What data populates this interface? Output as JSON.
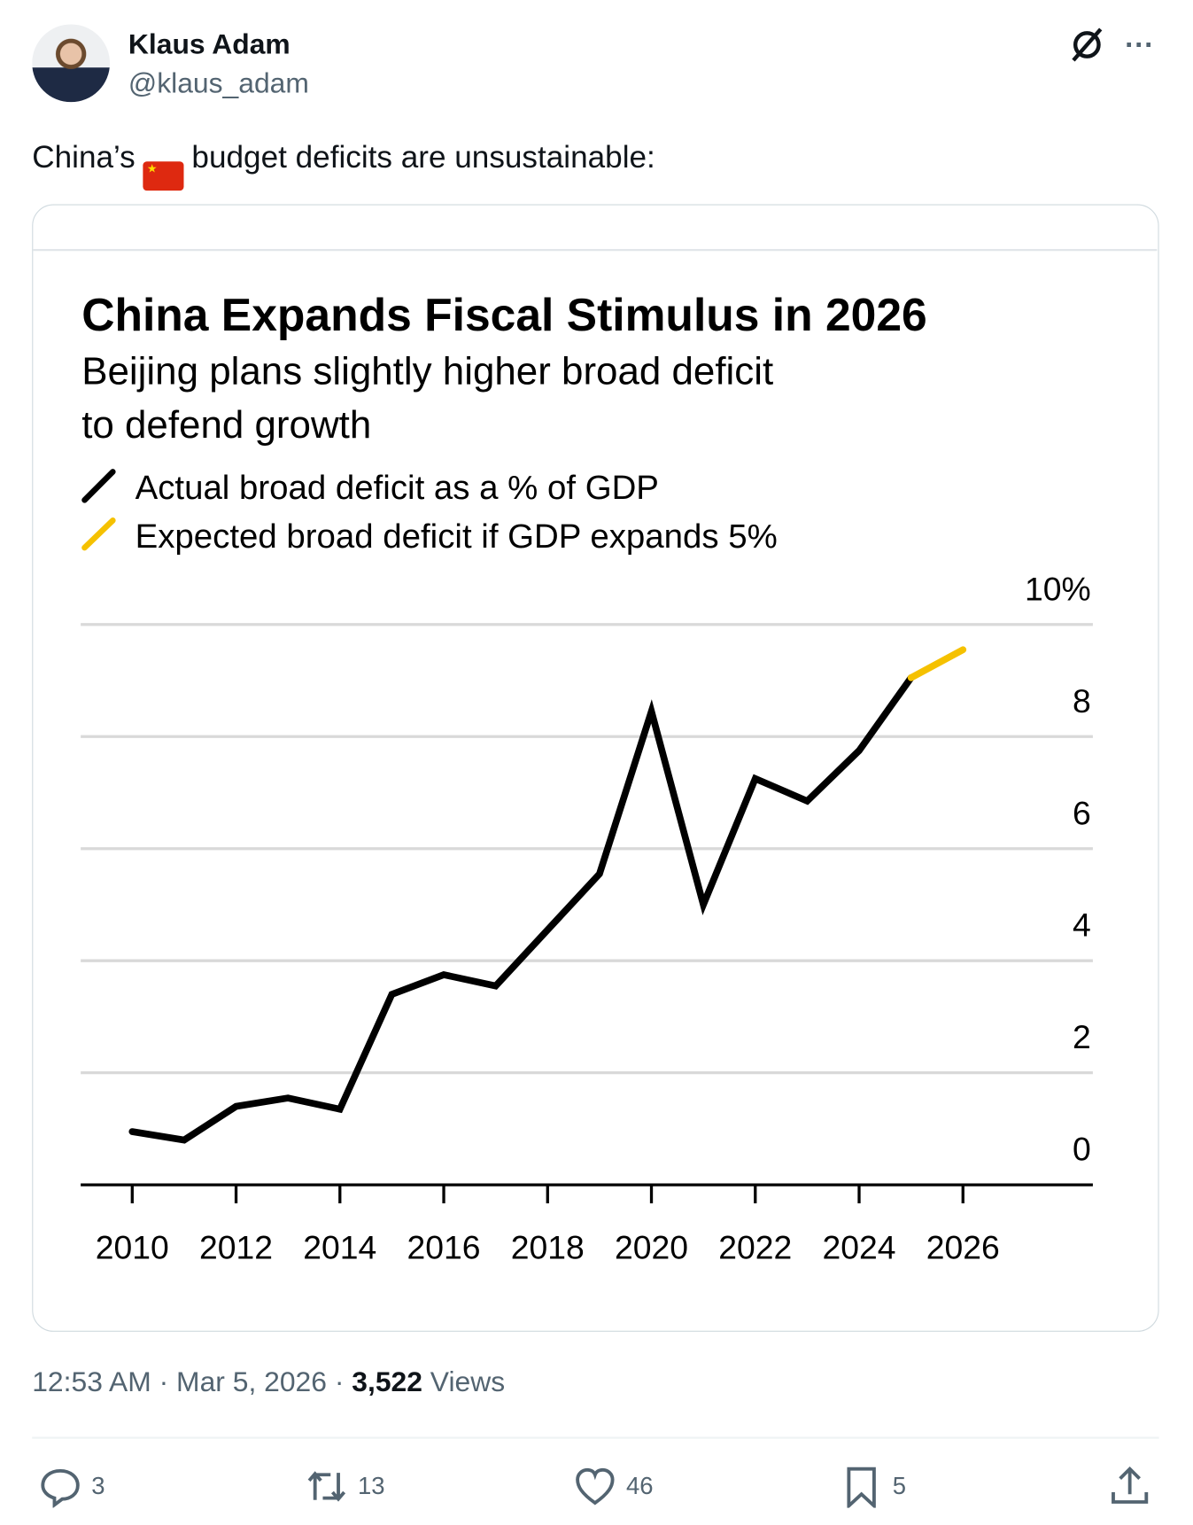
{
  "author": {
    "name": "Klaus Adam",
    "handle": "@klaus_adam"
  },
  "post": {
    "text_before": "China’s",
    "flag": "🇨🇳",
    "text_after": "budget deficits are unsustainable:"
  },
  "meta": {
    "time": "12:53 AM",
    "date": "Mar 5, 2026",
    "views_count": "3,522",
    "views_label": "Views",
    "sep": "·"
  },
  "actions": {
    "replies": "3",
    "reposts": "13",
    "likes": "46",
    "bookmarks": "5"
  },
  "icons": [
    "grok-icon",
    "more-icon",
    "reply-icon",
    "repost-icon",
    "like-icon",
    "bookmark-icon",
    "share-icon"
  ],
  "chart_data": {
    "type": "line",
    "title": "China Expands Fiscal Stimulus in 2026",
    "subtitle_lines": [
      "Beijing plans slightly higher broad deficit",
      "to defend growth"
    ],
    "legend": [
      "Actual broad deficit as a % of GDP",
      "Expected broad deficit if GDP expands 5%"
    ],
    "colors": {
      "actual": "#000000",
      "expected": "#f5c100"
    },
    "ylim": [
      0,
      10
    ],
    "yticks": [
      "0",
      "2",
      "4",
      "6",
      "8",
      "10%"
    ],
    "xticks": [
      "2010",
      "2012",
      "2014",
      "2016",
      "2018",
      "2020",
      "2022",
      "2024",
      "2026"
    ],
    "series": [
      {
        "name": "Actual broad deficit as a % of GDP",
        "x": [
          2010,
          2011,
          2012,
          2013,
          2014,
          2015,
          2016,
          2017,
          2018,
          2019,
          2020,
          2021,
          2022,
          2023,
          2024,
          2025
        ],
        "values": [
          0.95,
          0.8,
          1.4,
          1.55,
          1.35,
          3.4,
          3.75,
          3.55,
          4.55,
          5.55,
          8.45,
          5.0,
          7.25,
          6.85,
          7.75,
          9.05
        ]
      },
      {
        "name": "Expected broad deficit if GDP expands 5%",
        "x": [
          2025,
          2026
        ],
        "values": [
          9.05,
          9.55
        ]
      }
    ]
  }
}
